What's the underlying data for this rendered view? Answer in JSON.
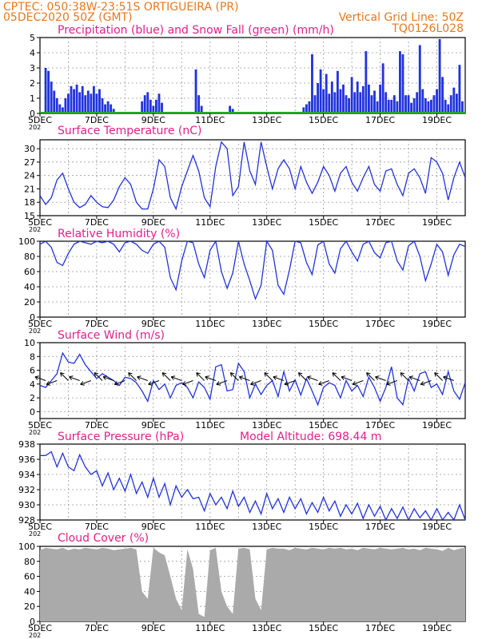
{
  "header": {
    "line1": "CPTEC:   050:38W-23:51S   ORTIGUEIRA (PR)",
    "line2": "05DEC2020 50Z (GMT)",
    "grid_note": "Vertical Grid Line: 50Z",
    "code": "TQ0126L028",
    "altitude": "Model Altitude: 698.44 m",
    "color_header": "#e8781e",
    "color_title": "#e0208a"
  },
  "colors": {
    "series": "#2233dd",
    "bars": "#2233dd",
    "snow": "#22aa22",
    "cloud": "#aaaaaa",
    "grid": "#999999"
  },
  "x_labels": [
    "5DEC",
    "7DEC",
    "9DEC",
    "11DEC",
    "13DEC",
    "15DEC",
    "17DEC",
    "19DEC"
  ],
  "tick_stub": "202",
  "chart_data": [
    {
      "id": "precip",
      "type": "bar",
      "title": "Precipitation (blue) and Snow Fall (green) (mm/h)",
      "ylim": [
        0,
        5
      ],
      "yticks": [
        "0",
        "1",
        "2",
        "3",
        "4",
        "5"
      ],
      "xlim": [
        0,
        15
      ],
      "x": [
        0.2,
        0.3,
        0.4,
        0.5,
        0.6,
        0.7,
        0.8,
        0.9,
        1.0,
        1.1,
        1.2,
        1.3,
        1.4,
        1.5,
        1.6,
        1.7,
        1.8,
        1.9,
        2.0,
        2.1,
        2.2,
        2.3,
        2.4,
        2.5,
        2.6,
        3.6,
        3.7,
        3.8,
        3.9,
        4.0,
        4.1,
        4.2,
        4.3,
        5.5,
        5.6,
        5.7,
        6.7,
        6.8,
        9.3,
        9.4,
        9.5,
        9.6,
        9.7,
        9.8,
        9.9,
        10.0,
        10.1,
        10.2,
        10.3,
        10.4,
        10.5,
        10.6,
        10.7,
        10.8,
        10.9,
        11.0,
        11.1,
        11.2,
        11.3,
        11.4,
        11.5,
        11.6,
        11.7,
        11.8,
        11.9,
        12.0,
        12.1,
        12.2,
        12.3,
        12.4,
        12.5,
        12.6,
        12.7,
        12.8,
        12.9,
        13.0,
        13.1,
        13.2,
        13.3,
        13.4,
        13.5,
        13.6,
        13.7,
        13.8,
        13.9,
        14.0,
        14.1,
        14.2,
        14.3,
        14.4,
        14.5,
        14.6,
        14.7,
        14.8,
        14.9
      ],
      "values": [
        3.0,
        2.8,
        2.1,
        1.5,
        1.0,
        0.6,
        0.4,
        1.0,
        1.3,
        1.8,
        1.6,
        1.9,
        1.4,
        1.8,
        1.2,
        1.5,
        1.3,
        1.8,
        1.3,
        1.6,
        1.0,
        0.6,
        0.8,
        0.6,
        0.3,
        0.8,
        1.2,
        1.4,
        0.9,
        0.5,
        0.9,
        1.3,
        0.7,
        2.9,
        1.2,
        0.5,
        0.5,
        0.3,
        0.4,
        0.6,
        0.8,
        3.9,
        1.2,
        2.0,
        2.9,
        1.6,
        2.6,
        1.3,
        2.1,
        1.4,
        2.8,
        1.6,
        1.9,
        1.2,
        1.0,
        2.4,
        1.4,
        2.1,
        1.4,
        1.8,
        4.1,
        1.9,
        1.2,
        1.5,
        0.8,
        1.9,
        3.3,
        1.4,
        0.9,
        0.9,
        1.2,
        0.8,
        4.1,
        3.9,
        1.2,
        1.2,
        0.7,
        1.0,
        1.4,
        4.5,
        1.6,
        1.0,
        0.8,
        0.9,
        1.2,
        1.6,
        4.9,
        2.4,
        0.9,
        0.6,
        1.2,
        1.7,
        1.3,
        3.2,
        0.8
      ],
      "snow": "0 (flat green line at zero)"
    },
    {
      "id": "temp",
      "type": "line",
      "title": "Surface Temperature (nC)",
      "ylim": [
        15,
        32
      ],
      "yticks": [
        "15",
        "18",
        "21",
        "24",
        "27",
        "30"
      ],
      "xlim": [
        0,
        15
      ],
      "x": [
        0.0,
        0.2,
        0.4,
        0.6,
        0.8,
        1.0,
        1.2,
        1.4,
        1.6,
        1.8,
        2.0,
        2.2,
        2.4,
        2.6,
        2.8,
        3.0,
        3.2,
        3.4,
        3.6,
        3.8,
        4.0,
        4.2,
        4.4,
        4.6,
        4.8,
        5.0,
        5.2,
        5.4,
        5.6,
        5.8,
        6.0,
        6.2,
        6.4,
        6.6,
        6.8,
        7.0,
        7.2,
        7.4,
        7.6,
        7.8,
        8.0,
        8.2,
        8.4,
        8.6,
        8.8,
        9.0,
        9.2,
        9.4,
        9.6,
        9.8,
        10.0,
        10.2,
        10.4,
        10.6,
        10.8,
        11.0,
        11.2,
        11.4,
        11.6,
        11.8,
        12.0,
        12.2,
        12.4,
        12.6,
        12.8,
        13.0,
        13.2,
        13.4,
        13.6,
        13.8,
        14.0,
        14.2,
        14.4,
        14.6,
        14.8,
        15.0
      ],
      "values": [
        19.5,
        17.5,
        19.0,
        23.0,
        24.5,
        21.0,
        18.0,
        16.8,
        17.5,
        19.5,
        18.0,
        17.0,
        16.8,
        18.5,
        21.5,
        23.5,
        22.0,
        18.0,
        16.5,
        16.5,
        21.0,
        27.5,
        26.0,
        19.0,
        16.5,
        21.5,
        25.0,
        28.5,
        25.0,
        19.0,
        17.0,
        26.0,
        31.5,
        30.0,
        19.5,
        21.5,
        31.5,
        25.0,
        22.0,
        31.5,
        26.0,
        21.0,
        25.5,
        27.5,
        25.5,
        21.0,
        26.0,
        22.5,
        20.0,
        22.5,
        26.0,
        24.0,
        20.5,
        24.5,
        26.0,
        22.5,
        20.5,
        23.5,
        26.0,
        22.0,
        20.5,
        25.0,
        25.5,
        22.0,
        19.5,
        24.5,
        25.5,
        23.5,
        20.0,
        28.0,
        27.0,
        24.5,
        18.5,
        23.5,
        27.0,
        23.5
      ]
    },
    {
      "id": "rh",
      "type": "line",
      "title": "Relative Humidity (%)",
      "ylim": [
        0,
        100
      ],
      "yticks": [
        "0",
        "20",
        "40",
        "60",
        "80",
        "100"
      ],
      "xlim": [
        0,
        15
      ],
      "x": [
        0.0,
        0.2,
        0.4,
        0.6,
        0.8,
        1.0,
        1.2,
        1.4,
        1.6,
        1.8,
        2.0,
        2.2,
        2.4,
        2.6,
        2.8,
        3.0,
        3.2,
        3.4,
        3.6,
        3.8,
        4.0,
        4.2,
        4.4,
        4.6,
        4.8,
        5.0,
        5.2,
        5.4,
        5.6,
        5.8,
        6.0,
        6.2,
        6.4,
        6.6,
        6.8,
        7.0,
        7.2,
        7.4,
        7.6,
        7.8,
        8.0,
        8.2,
        8.4,
        8.6,
        8.8,
        9.0,
        9.2,
        9.4,
        9.6,
        9.8,
        10.0,
        10.2,
        10.4,
        10.6,
        10.8,
        11.0,
        11.2,
        11.4,
        11.6,
        11.8,
        12.0,
        12.2,
        12.4,
        12.6,
        12.8,
        13.0,
        13.2,
        13.4,
        13.6,
        13.8,
        14.0,
        14.2,
        14.4,
        14.6,
        14.8,
        15.0
      ],
      "values": [
        96,
        100,
        92,
        72,
        68,
        84,
        96,
        100,
        98,
        96,
        100,
        98,
        100,
        96,
        86,
        98,
        100,
        96,
        88,
        84,
        96,
        100,
        92,
        52,
        36,
        74,
        100,
        98,
        70,
        52,
        88,
        100,
        60,
        38,
        58,
        100,
        70,
        48,
        24,
        42,
        100,
        88,
        42,
        30,
        62,
        100,
        98,
        72,
        56,
        95,
        100,
        70,
        58,
        90,
        100,
        86,
        74,
        96,
        100,
        85,
        78,
        98,
        100,
        74,
        62,
        94,
        100,
        80,
        48,
        70,
        96,
        86,
        55,
        82,
        96,
        93
      ]
    },
    {
      "id": "wind",
      "type": "line",
      "title": "Surface Wind (m/s)",
      "ylim": [
        -1,
        10
      ],
      "yticks": [
        "0",
        "2",
        "4",
        "6",
        "8",
        "10"
      ],
      "xlim": [
        0,
        15
      ],
      "x": [
        0.0,
        0.2,
        0.4,
        0.6,
        0.8,
        1.0,
        1.2,
        1.4,
        1.6,
        1.8,
        2.0,
        2.2,
        2.4,
        2.6,
        2.8,
        3.0,
        3.2,
        3.4,
        3.6,
        3.8,
        4.0,
        4.2,
        4.4,
        4.6,
        4.8,
        5.0,
        5.2,
        5.4,
        5.6,
        5.8,
        6.0,
        6.2,
        6.4,
        6.6,
        6.8,
        7.0,
        7.2,
        7.4,
        7.6,
        7.8,
        8.0,
        8.2,
        8.4,
        8.6,
        8.8,
        9.0,
        9.2,
        9.4,
        9.6,
        9.8,
        10.0,
        10.2,
        10.4,
        10.6,
        10.8,
        11.0,
        11.2,
        11.4,
        11.6,
        11.8,
        12.0,
        12.2,
        12.4,
        12.6,
        12.8,
        13.0,
        13.2,
        13.4,
        13.6,
        13.8,
        14.0,
        14.2,
        14.4,
        14.6,
        14.8,
        15.0
      ],
      "values": [
        3.8,
        3.5,
        4.5,
        5.5,
        8.5,
        7.2,
        7.0,
        8.3,
        6.8,
        5.8,
        4.8,
        5.5,
        5.0,
        4.5,
        3.8,
        5.0,
        4.8,
        4.2,
        3.0,
        1.5,
        4.5,
        3.2,
        4.0,
        2.0,
        3.8,
        4.2,
        3.5,
        2.0,
        4.3,
        3.5,
        1.8,
        6.5,
        6.8,
        3.0,
        3.2,
        7.0,
        5.8,
        2.0,
        4.0,
        2.5,
        3.8,
        4.5,
        2.2,
        5.8,
        3.0,
        4.6,
        2.4,
        4.8,
        3.0,
        1.0,
        3.5,
        4.2,
        3.8,
        2.0,
        4.5,
        3.0,
        3.8,
        2.2,
        5.0,
        3.5,
        1.5,
        3.5,
        6.5,
        2.0,
        1.0,
        4.8,
        3.0,
        5.5,
        5.8,
        3.5,
        4.0,
        2.5,
        5.8,
        3.0,
        1.8,
        4.2
      ],
      "arrows": "wind direction vectors drawn along the series"
    },
    {
      "id": "pressure",
      "type": "line",
      "title": "Surface Pressure (hPa)",
      "ylim": [
        928,
        938
      ],
      "yticks": [
        "928",
        "930",
        "932",
        "934",
        "936",
        "938"
      ],
      "xlim": [
        0,
        15
      ],
      "x": [
        0.0,
        0.2,
        0.4,
        0.6,
        0.8,
        1.0,
        1.2,
        1.4,
        1.6,
        1.8,
        2.0,
        2.2,
        2.4,
        2.6,
        2.8,
        3.0,
        3.2,
        3.4,
        3.6,
        3.8,
        4.0,
        4.2,
        4.4,
        4.6,
        4.8,
        5.0,
        5.2,
        5.4,
        5.6,
        5.8,
        6.0,
        6.2,
        6.4,
        6.6,
        6.8,
        7.0,
        7.2,
        7.4,
        7.6,
        7.8,
        8.0,
        8.2,
        8.4,
        8.6,
        8.8,
        9.0,
        9.2,
        9.4,
        9.6,
        9.8,
        10.0,
        10.2,
        10.4,
        10.6,
        10.8,
        11.0,
        11.2,
        11.4,
        11.6,
        11.8,
        12.0,
        12.2,
        12.4,
        12.6,
        12.8,
        13.0,
        13.2,
        13.4,
        13.6,
        13.8,
        14.0,
        14.2,
        14.4,
        14.6,
        14.8,
        15.0
      ],
      "values": [
        936.5,
        936.5,
        937.0,
        935.0,
        936.8,
        935.0,
        934.5,
        936.6,
        935.0,
        934.0,
        934.5,
        932.5,
        934.2,
        932.0,
        933.5,
        931.8,
        934.0,
        931.5,
        933.0,
        931.0,
        933.5,
        931.0,
        932.8,
        930.0,
        932.5,
        931.0,
        932.0,
        930.8,
        931.0,
        929.2,
        931.5,
        930.0,
        931.0,
        929.5,
        931.8,
        929.8,
        931.0,
        929.0,
        930.5,
        928.8,
        931.5,
        929.5,
        930.8,
        929.0,
        931.0,
        929.5,
        930.8,
        928.8,
        930.3,
        929.0,
        931.0,
        929.2,
        930.5,
        928.5,
        930.0,
        928.8,
        930.2,
        928.2,
        930.0,
        928.5,
        929.8,
        928.0,
        929.5,
        928.2,
        929.7,
        928.0,
        929.5,
        928.3,
        929.2,
        928.0,
        929.5,
        928.0,
        929.0,
        928.0,
        930.0,
        928.0
      ]
    },
    {
      "id": "cloud",
      "type": "area",
      "title": "Cloud Cover (%)",
      "ylim": [
        0,
        100
      ],
      "yticks": [
        "0",
        "20",
        "40",
        "60",
        "80",
        "100"
      ],
      "xlim": [
        0,
        15
      ],
      "x": [
        0.0,
        0.2,
        0.4,
        0.6,
        0.8,
        1.0,
        1.2,
        1.4,
        1.6,
        1.8,
        2.0,
        2.2,
        2.4,
        2.6,
        2.8,
        3.0,
        3.2,
        3.4,
        3.6,
        3.8,
        4.0,
        4.2,
        4.4,
        4.6,
        4.8,
        5.0,
        5.2,
        5.4,
        5.6,
        5.8,
        6.0,
        6.2,
        6.4,
        6.6,
        6.8,
        7.0,
        7.2,
        7.4,
        7.6,
        7.8,
        8.0,
        8.2,
        8.4,
        8.6,
        8.8,
        9.0,
        9.2,
        9.4,
        9.6,
        9.8,
        10.0,
        10.2,
        10.4,
        10.6,
        10.8,
        11.0,
        11.2,
        11.4,
        11.6,
        11.8,
        12.0,
        12.2,
        12.4,
        12.6,
        12.8,
        13.0,
        13.2,
        13.4,
        13.6,
        13.8,
        14.0,
        14.2,
        14.4,
        14.6,
        14.8,
        15.0
      ],
      "values": [
        95,
        98,
        97,
        96,
        98,
        95,
        97,
        96,
        98,
        97,
        96,
        98,
        97,
        95,
        96,
        97,
        98,
        96,
        40,
        30,
        98,
        92,
        88,
        60,
        30,
        15,
        96,
        70,
        10,
        6,
        95,
        98,
        40,
        20,
        10,
        97,
        98,
        96,
        30,
        15,
        96,
        98,
        97,
        97,
        95,
        98,
        97,
        96,
        98,
        97,
        96,
        98,
        97,
        98,
        96,
        97,
        95,
        98,
        97,
        96,
        98,
        97,
        96,
        97,
        98,
        96,
        97,
        95,
        98,
        97,
        96,
        94,
        98,
        95,
        97,
        98
      ]
    }
  ]
}
